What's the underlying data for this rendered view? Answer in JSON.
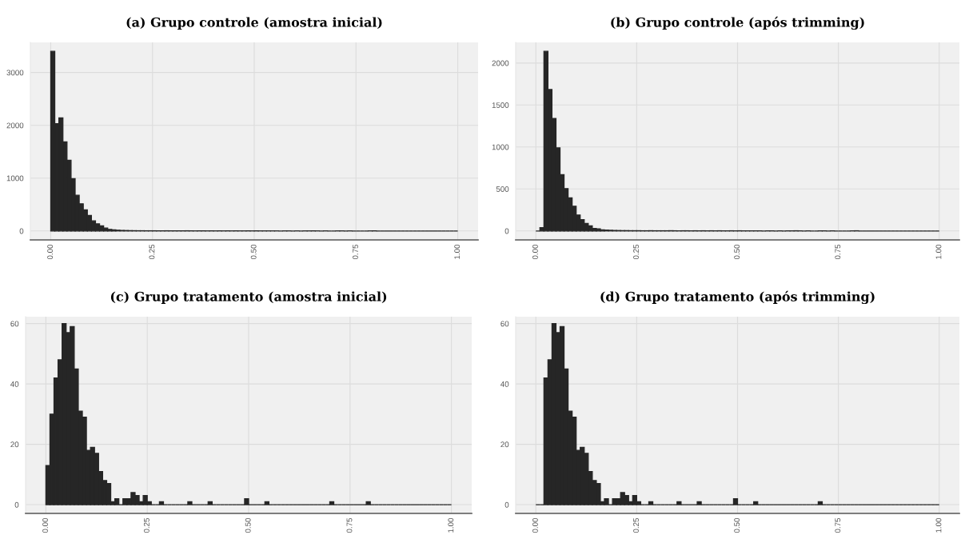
{
  "chart_data": [
    {
      "type": "histogram",
      "title": "(a) Grupo controle (amostra inicial)",
      "bins": [
        0.0,
        0.01,
        0.02,
        0.03,
        0.04,
        0.05,
        0.06,
        0.07,
        0.08,
        0.09,
        0.1,
        0.11,
        0.12,
        0.13,
        0.14,
        0.15,
        0.16,
        0.17,
        0.18,
        0.19,
        0.2,
        0.21,
        0.22,
        0.23,
        0.24,
        0.25,
        0.26,
        0.27,
        0.28,
        0.29,
        0.3,
        0.31,
        0.32,
        0.33,
        0.34,
        0.35,
        0.36,
        0.37,
        0.38,
        0.39,
        0.4,
        0.41,
        0.42,
        0.43,
        0.44,
        0.45,
        0.46,
        0.47,
        0.48,
        0.49,
        0.5,
        0.51,
        0.52,
        0.53,
        0.54,
        0.55,
        0.56,
        0.57,
        0.58,
        0.59,
        0.6,
        0.61,
        0.62,
        0.63,
        0.64,
        0.65,
        0.66,
        0.67,
        0.68,
        0.69,
        0.7,
        0.71,
        0.72,
        0.73,
        0.74,
        0.75,
        0.76,
        0.77,
        0.78,
        0.79,
        0.8,
        0.81,
        0.82,
        0.83,
        0.84,
        0.85,
        0.86,
        0.87,
        0.88,
        0.89,
        0.9,
        0.91,
        0.92,
        0.93,
        0.94,
        0.95,
        0.96,
        0.97,
        0.98,
        0.99,
        1.0
      ],
      "values": [
        3400,
        2030,
        2140,
        1685,
        1340,
        990,
        675,
        515,
        400,
        295,
        190,
        135,
        95,
        55,
        30,
        20,
        14,
        10,
        8,
        6,
        5,
        4,
        4,
        3,
        3,
        3,
        2,
        2,
        3,
        2,
        2,
        2,
        2,
        3,
        2,
        1,
        2,
        2,
        1,
        2,
        1,
        2,
        1,
        2,
        1,
        2,
        1,
        1,
        2,
        1,
        2,
        1,
        1,
        1,
        1,
        1,
        0,
        1,
        1,
        0,
        1,
        0,
        1,
        1,
        2,
        1,
        0,
        1,
        0,
        0,
        1,
        1,
        0,
        1,
        0,
        0,
        0,
        0,
        1,
        2,
        0,
        0,
        0,
        0,
        0,
        0,
        0,
        0,
        0,
        0,
        0,
        0,
        0,
        0,
        0,
        0,
        0,
        0,
        0,
        0
      ],
      "color": "#262626",
      "xlim": [
        -0.05,
        1.05
      ],
      "ylim": [
        -170,
        3570
      ],
      "xticks": [
        {
          "value": 0,
          "label": "0.00"
        },
        {
          "value": 0.25,
          "label": "0.25"
        },
        {
          "value": 0.5,
          "label": "0.50"
        },
        {
          "value": 0.75,
          "label": "0.75"
        },
        {
          "value": 1,
          "label": "1.00"
        }
      ],
      "yticks": [
        0,
        1000,
        2000,
        3000
      ],
      "grid": true
    },
    {
      "type": "histogram",
      "title": "(b) Grupo controle (após trimming)",
      "bins": [
        0.0,
        0.01,
        0.02,
        0.03,
        0.04,
        0.05,
        0.06,
        0.07,
        0.08,
        0.09,
        0.1,
        0.11,
        0.12,
        0.13,
        0.14,
        0.15,
        0.16,
        0.17,
        0.18,
        0.19,
        0.2,
        0.21,
        0.22,
        0.23,
        0.24,
        0.25,
        0.26,
        0.27,
        0.28,
        0.29,
        0.3,
        0.31,
        0.32,
        0.33,
        0.34,
        0.35,
        0.36,
        0.37,
        0.38,
        0.39,
        0.4,
        0.41,
        0.42,
        0.43,
        0.44,
        0.45,
        0.46,
        0.47,
        0.48,
        0.49,
        0.5,
        0.51,
        0.52,
        0.53,
        0.54,
        0.55,
        0.56,
        0.57,
        0.58,
        0.59,
        0.6,
        0.61,
        0.62,
        0.63,
        0.64,
        0.65,
        0.66,
        0.67,
        0.68,
        0.69,
        0.7,
        0.71,
        0.72,
        0.73,
        0.74,
        0.75,
        0.76,
        0.77,
        0.78,
        0.79,
        0.8,
        0.81,
        0.82,
        0.83,
        0.84,
        0.85,
        0.86,
        0.87,
        0.88,
        0.89,
        0.9,
        0.91,
        0.92,
        0.93,
        0.94,
        0.95,
        0.96,
        0.97,
        0.98,
        0.99,
        1.0
      ],
      "values": [
        0,
        40,
        2140,
        1685,
        1340,
        990,
        670,
        505,
        395,
        295,
        190,
        135,
        90,
        60,
        30,
        24,
        14,
        10,
        8,
        6,
        5,
        4,
        4,
        3,
        3,
        3,
        2,
        2,
        3,
        2,
        2,
        2,
        2,
        3,
        2,
        1,
        2,
        2,
        1,
        2,
        1,
        2,
        1,
        2,
        1,
        2,
        1,
        1,
        2,
        1,
        2,
        1,
        1,
        1,
        1,
        1,
        0,
        1,
        1,
        0,
        1,
        0,
        1,
        1,
        2,
        1,
        0,
        1,
        0,
        0,
        1,
        1,
        0,
        1,
        0,
        0,
        0,
        0,
        1,
        2,
        0,
        0,
        0,
        0,
        0,
        0,
        0,
        0,
        0,
        0,
        0,
        0,
        0,
        0,
        0,
        0,
        0,
        0,
        0,
        0
      ],
      "color": "#262626",
      "xlim": [
        -0.05,
        1.05
      ],
      "ylim": [
        -107,
        2246
      ],
      "xticks": [
        {
          "value": 0,
          "label": "0.00"
        },
        {
          "value": 0.25,
          "label": "0.25"
        },
        {
          "value": 0.5,
          "label": "0.50"
        },
        {
          "value": 0.75,
          "label": "0.75"
        },
        {
          "value": 1,
          "label": "1.00"
        }
      ],
      "yticks": [
        0,
        500,
        1000,
        1500,
        2000
      ],
      "grid": true
    },
    {
      "type": "histogram",
      "title": "(c) Grupo tratamento (amostra inicial)",
      "bins": [
        0.0,
        0.01,
        0.02,
        0.03,
        0.04,
        0.05,
        0.06,
        0.07,
        0.08,
        0.09,
        0.1,
        0.11,
        0.12,
        0.13,
        0.14,
        0.15,
        0.16,
        0.17,
        0.18,
        0.19,
        0.2,
        0.21,
        0.22,
        0.23,
        0.24,
        0.25,
        0.26,
        0.27,
        0.28,
        0.29,
        0.3,
        0.31,
        0.32,
        0.33,
        0.34,
        0.35,
        0.36,
        0.37,
        0.38,
        0.39,
        0.4,
        0.41,
        0.42,
        0.43,
        0.44,
        0.45,
        0.46,
        0.47,
        0.48,
        0.49,
        0.5,
        0.51,
        0.52,
        0.53,
        0.54,
        0.55,
        0.56,
        0.57,
        0.58,
        0.59,
        0.6,
        0.61,
        0.62,
        0.63,
        0.64,
        0.65,
        0.66,
        0.67,
        0.68,
        0.69,
        0.7,
        0.71,
        0.72,
        0.73,
        0.74,
        0.75,
        0.76,
        0.77,
        0.78,
        0.79,
        0.8,
        0.81,
        0.82,
        0.83,
        0.84,
        0.85,
        0.86,
        0.87,
        0.88,
        0.89,
        0.9,
        0.91,
        0.92,
        0.93,
        0.94,
        0.95,
        0.96,
        0.97,
        0.98,
        0.99,
        1.0
      ],
      "values": [
        13,
        30,
        42,
        48,
        60,
        57,
        59,
        45,
        31,
        29,
        18,
        19,
        17,
        11,
        8,
        7,
        1,
        2,
        0,
        2,
        2,
        4,
        3,
        1,
        3,
        1,
        0,
        0,
        1,
        0,
        0,
        0,
        0,
        0,
        0,
        1,
        0,
        0,
        0,
        0,
        1,
        0,
        0,
        0,
        0,
        0,
        0,
        0,
        0,
        2,
        0,
        0,
        0,
        0,
        1,
        0,
        0,
        0,
        0,
        0,
        0,
        0,
        0,
        0,
        0,
        0,
        0,
        0,
        0,
        0,
        1,
        0,
        0,
        0,
        0,
        0,
        0,
        0,
        0,
        1,
        0,
        0,
        0,
        0,
        0,
        0,
        0,
        0,
        0,
        0,
        0,
        0,
        0,
        0,
        0,
        0,
        0,
        0,
        0,
        0
      ],
      "color": "#262626",
      "xlim": [
        -0.05,
        1.05
      ],
      "ylim": [
        -2.9,
        62.3
      ],
      "xticks": [
        {
          "value": 0,
          "label": "0.00"
        },
        {
          "value": 0.25,
          "label": "0.25"
        },
        {
          "value": 0.5,
          "label": "0.50"
        },
        {
          "value": 0.75,
          "label": "0.75"
        },
        {
          "value": 1,
          "label": "1.00"
        }
      ],
      "yticks": [
        0,
        20,
        40,
        60
      ],
      "grid": true
    },
    {
      "type": "histogram",
      "title": "(d) Grupo tratamento (após trimming)",
      "bins": [
        0.0,
        0.01,
        0.02,
        0.03,
        0.04,
        0.05,
        0.06,
        0.07,
        0.08,
        0.09,
        0.1,
        0.11,
        0.12,
        0.13,
        0.14,
        0.15,
        0.16,
        0.17,
        0.18,
        0.19,
        0.2,
        0.21,
        0.22,
        0.23,
        0.24,
        0.25,
        0.26,
        0.27,
        0.28,
        0.29,
        0.3,
        0.31,
        0.32,
        0.33,
        0.34,
        0.35,
        0.36,
        0.37,
        0.38,
        0.39,
        0.4,
        0.41,
        0.42,
        0.43,
        0.44,
        0.45,
        0.46,
        0.47,
        0.48,
        0.49,
        0.5,
        0.51,
        0.52,
        0.53,
        0.54,
        0.55,
        0.56,
        0.57,
        0.58,
        0.59,
        0.6,
        0.61,
        0.62,
        0.63,
        0.64,
        0.65,
        0.66,
        0.67,
        0.68,
        0.69,
        0.7,
        0.71,
        0.72,
        0.73,
        0.74,
        0.75,
        0.76,
        0.77,
        0.78,
        0.79,
        0.8,
        0.81,
        0.82,
        0.83,
        0.84,
        0.85,
        0.86,
        0.87,
        0.88,
        0.89,
        0.9,
        0.91,
        0.92,
        0.93,
        0.94,
        0.95,
        0.96,
        0.97,
        0.98,
        0.99,
        1.0
      ],
      "values": [
        0,
        0,
        42,
        48,
        60,
        57,
        59,
        45,
        31,
        29,
        18,
        19,
        17,
        11,
        8,
        7,
        1,
        2,
        0,
        2,
        2,
        4,
        3,
        1,
        3,
        1,
        0,
        0,
        1,
        0,
        0,
        0,
        0,
        0,
        0,
        1,
        0,
        0,
        0,
        0,
        1,
        0,
        0,
        0,
        0,
        0,
        0,
        0,
        0,
        2,
        0,
        0,
        0,
        0,
        1,
        0,
        0,
        0,
        0,
        0,
        0,
        0,
        0,
        0,
        0,
        0,
        0,
        0,
        0,
        0,
        1,
        0,
        0,
        0,
        0,
        0,
        0,
        0,
        0,
        0,
        0,
        0,
        0,
        0,
        0,
        0,
        0,
        0,
        0,
        0,
        0,
        0,
        0,
        0,
        0,
        0,
        0,
        0,
        0,
        0
      ],
      "color": "#262626",
      "xlim": [
        -0.05,
        1.05
      ],
      "ylim": [
        -2.9,
        62.3
      ],
      "xticks": [
        {
          "value": 0,
          "label": "0.00"
        },
        {
          "value": 0.25,
          "label": "0.25"
        },
        {
          "value": 0.5,
          "label": "0.50"
        },
        {
          "value": 0.75,
          "label": "0.75"
        },
        {
          "value": 1,
          "label": "1.00"
        }
      ],
      "yticks": [
        0,
        20,
        40,
        60
      ],
      "grid": true
    }
  ]
}
